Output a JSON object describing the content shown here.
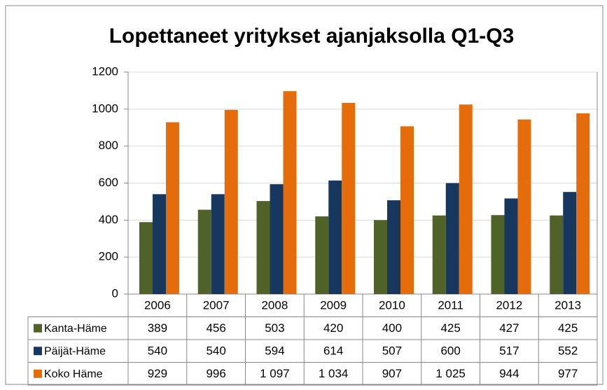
{
  "chart_data": {
    "type": "bar",
    "title": "Lopettaneet yritykset ajanjaksolla Q1-Q3",
    "categories": [
      "2006",
      "2007",
      "2008",
      "2009",
      "2010",
      "2011",
      "2012",
      "2013"
    ],
    "series": [
      {
        "name": "Kanta-Häme",
        "color": "#4f6228",
        "values": [
          389,
          456,
          503,
          420,
          400,
          425,
          427,
          425
        ]
      },
      {
        "name": "Päijät-Häme",
        "color": "#17375e",
        "values": [
          540,
          540,
          594,
          614,
          507,
          600,
          517,
          552
        ]
      },
      {
        "name": "Koko Häme",
        "color": "#e46c0a",
        "values": [
          929,
          996,
          1097,
          1034,
          907,
          1025,
          944,
          977
        ],
        "value_labels": [
          "929",
          "996",
          "1 097",
          "1 034",
          "907",
          "1 025",
          "944",
          "977"
        ]
      }
    ],
    "ylim": [
      0,
      1200
    ],
    "yticks": [
      0,
      200,
      400,
      600,
      800,
      1000,
      1200
    ],
    "grid": true
  }
}
